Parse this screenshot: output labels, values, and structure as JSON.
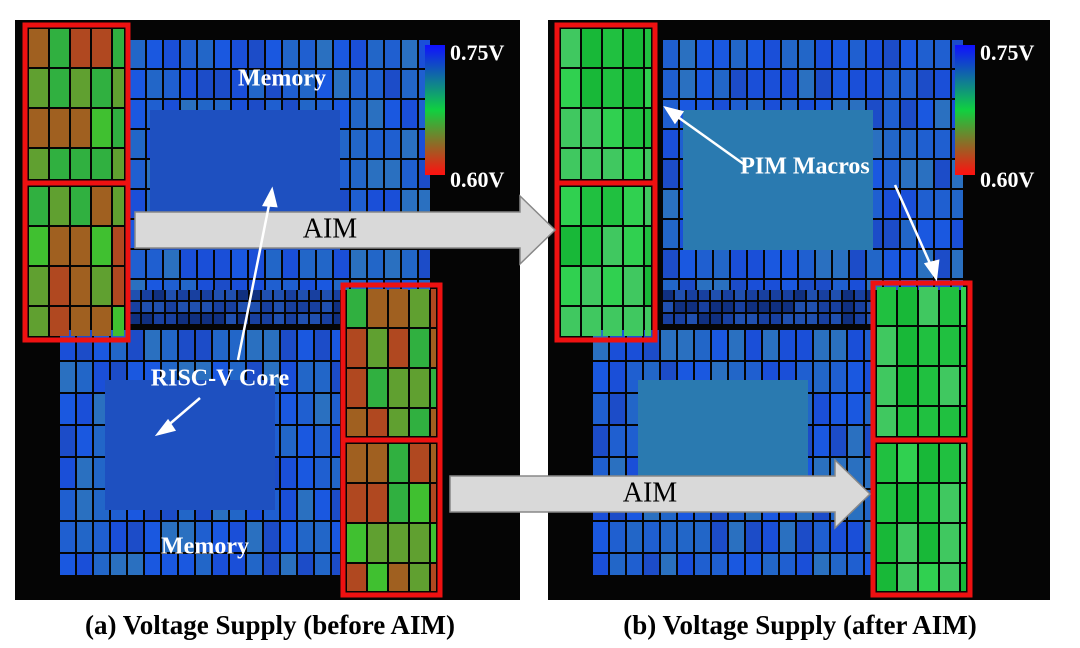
{
  "panels": [
    {
      "caption": "(a) Voltage Supply (before AIM)",
      "colorbar": {
        "max_label": "0.75V",
        "min_label": "0.60V"
      },
      "labels": [
        "Memory",
        "RISC-V Core",
        "Memory"
      ]
    },
    {
      "caption": "(b) Voltage Supply (after AIM)",
      "colorbar": {
        "max_label": "0.75V",
        "min_label": "0.60V"
      },
      "labels": [
        "PIM Macros"
      ]
    }
  ],
  "arrows": [
    "AIM",
    "AIM"
  ]
}
